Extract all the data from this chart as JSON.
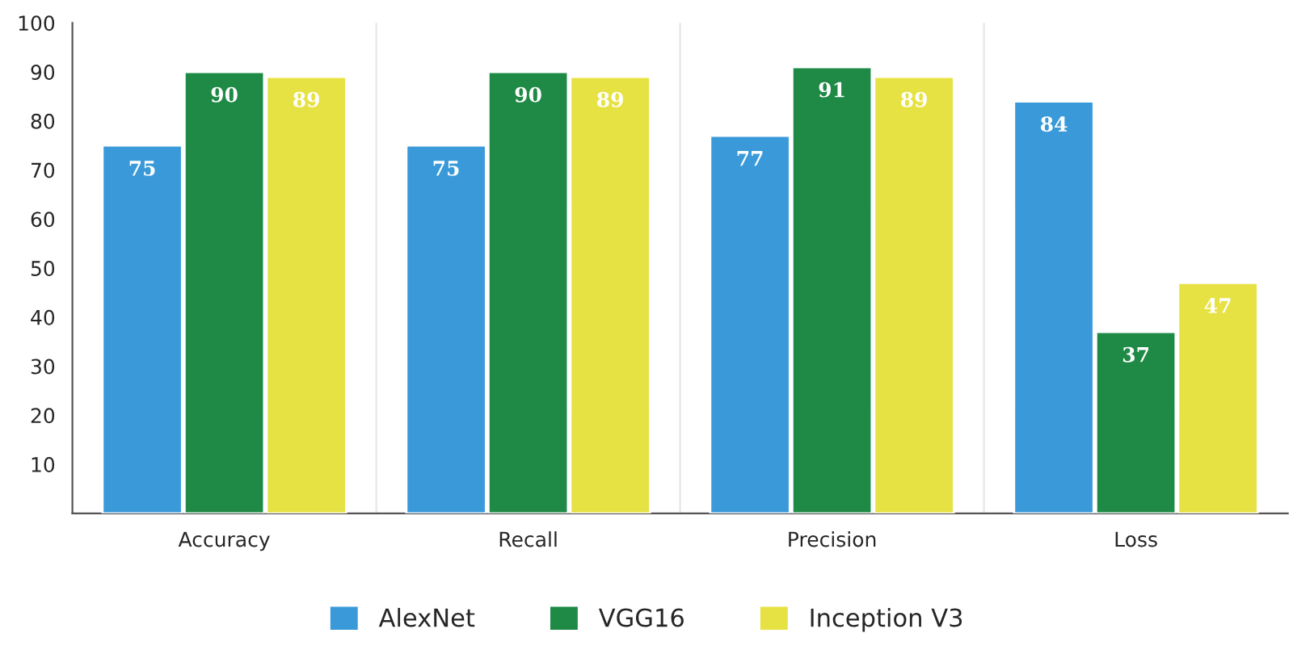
{
  "chart_data": {
    "type": "bar",
    "categories": [
      "Accuracy",
      "Recall",
      "Precision",
      "Loss"
    ],
    "series": [
      {
        "name": "AlexNet",
        "color": "#3a9ad9",
        "values": [
          75,
          75,
          77,
          84
        ]
      },
      {
        "name": "VGG16",
        "color": "#1e8a46",
        "values": [
          90,
          90,
          91,
          37
        ]
      },
      {
        "name": "Inception V3",
        "color": "#e6e243",
        "values": [
          89,
          89,
          89,
          47
        ]
      }
    ],
    "ylim": [
      0,
      100
    ],
    "yticks": [
      10,
      20,
      30,
      40,
      50,
      60,
      70,
      80,
      90,
      100
    ],
    "grid": "x",
    "legend": "bottom",
    "data_labels": true
  }
}
